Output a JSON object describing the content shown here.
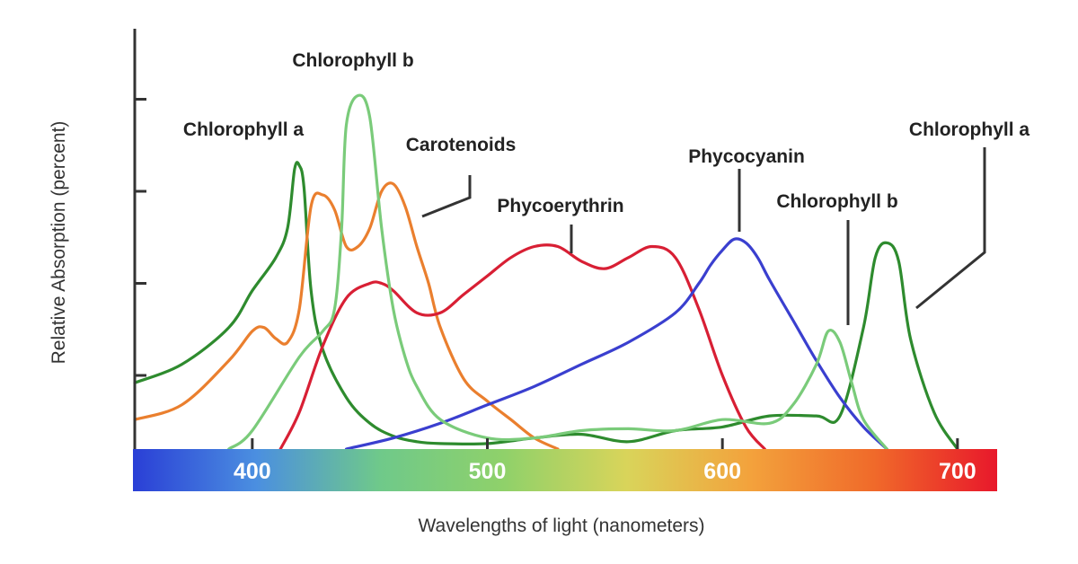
{
  "chart_data": {
    "type": "line",
    "title": "",
    "xlabel": "Wavelengths of light (nanometers)",
    "ylabel": "Relative Absorption (percent)",
    "xlim": [
      350,
      710
    ],
    "ylim": [
      0,
      100
    ],
    "xticks": [
      400,
      500,
      600,
      700
    ],
    "ytick_marks": [
      20,
      45,
      70,
      95
    ],
    "legend": "direct labels on curves",
    "grid": false,
    "spectrum_bar": {
      "stops": [
        "#2a3fd6",
        "#4b8fe0",
        "#6fc98a",
        "#8fd16a",
        "#d9d45a",
        "#f3a23c",
        "#f06a2a",
        "#e8182b"
      ]
    },
    "series": [
      {
        "name": "Chlorophyll a",
        "color": "#2e8b2e",
        "x": [
          350,
          370,
          390,
          400,
          410,
          415,
          418,
          420,
          422,
          425,
          430,
          440,
          450,
          460,
          470,
          480,
          500,
          520,
          540,
          560,
          580,
          600,
          620,
          640,
          650,
          660,
          665,
          670,
          675,
          680,
          690,
          700
        ],
        "y": [
          18,
          23,
          33,
          43,
          52,
          60,
          76,
          77,
          71,
          43,
          27,
          14,
          7,
          3.5,
          2,
          1.5,
          1.5,
          3,
          4,
          2,
          5,
          6,
          9,
          9,
          9,
          33,
          52,
          56,
          51,
          30,
          10,
          0
        ]
      },
      {
        "name": "Chlorophyll b",
        "color": "#7acb7a",
        "x": [
          390,
          400,
          420,
          430,
          435,
          438,
          440,
          445,
          450,
          455,
          460,
          465,
          470,
          480,
          500,
          520,
          540,
          560,
          580,
          600,
          620,
          630,
          640,
          645,
          650,
          655,
          660,
          670
        ],
        "y": [
          0,
          5,
          25,
          32,
          38,
          60,
          88,
          96,
          90,
          60,
          38,
          25,
          17,
          8,
          3,
          3,
          5,
          5.5,
          5,
          8,
          7,
          12,
          23,
          32,
          29,
          18,
          8,
          0
        ]
      },
      {
        "name": "Carotenoids",
        "color": "#ea7f2e",
        "x": [
          350,
          370,
          390,
          400,
          405,
          410,
          415,
          420,
          425,
          430,
          435,
          440,
          445,
          450,
          455,
          460,
          465,
          470,
          475,
          480,
          490,
          500,
          510,
          520,
          530
        ],
        "y": [
          8,
          12,
          24,
          32,
          33,
          30,
          29,
          38,
          66,
          69,
          65,
          55,
          55,
          60,
          70,
          72,
          66,
          55,
          45,
          33,
          19,
          13,
          8,
          3,
          0
        ]
      },
      {
        "name": "Phycoerythrin",
        "color": "#d81f34",
        "x": [
          412,
          420,
          430,
          440,
          450,
          455,
          460,
          470,
          480,
          490,
          500,
          510,
          520,
          530,
          540,
          550,
          560,
          570,
          580,
          590,
          600,
          610,
          618
        ],
        "y": [
          0,
          10,
          28,
          41,
          45,
          45,
          43,
          37,
          37,
          42,
          47,
          52,
          55,
          55,
          51,
          49,
          52,
          55,
          52,
          38,
          20,
          6,
          0
        ]
      },
      {
        "name": "Phycocyanin",
        "color": "#3a3fcf",
        "x": [
          440,
          460,
          480,
          500,
          520,
          540,
          560,
          580,
          590,
          595,
          600,
          605,
          610,
          615,
          620,
          630,
          640,
          650,
          660,
          670
        ],
        "y": [
          0,
          3,
          7,
          12,
          17,
          23,
          29,
          37,
          45,
          50,
          54,
          57,
          56,
          52,
          46,
          35,
          24,
          14,
          6,
          0
        ]
      }
    ],
    "labels": [
      {
        "text": "Chlorophyll b",
        "series": 1
      },
      {
        "text": "Chlorophyll a",
        "series": 0
      },
      {
        "text": "Carotenoids",
        "series": 2
      },
      {
        "text": "Phycoerythrin",
        "series": 3
      },
      {
        "text": "Phycocyanin",
        "series": 4
      },
      {
        "text": "Chlorophyll b",
        "series": 1
      },
      {
        "text": "Chlorophyll a",
        "series": 0
      }
    ]
  }
}
